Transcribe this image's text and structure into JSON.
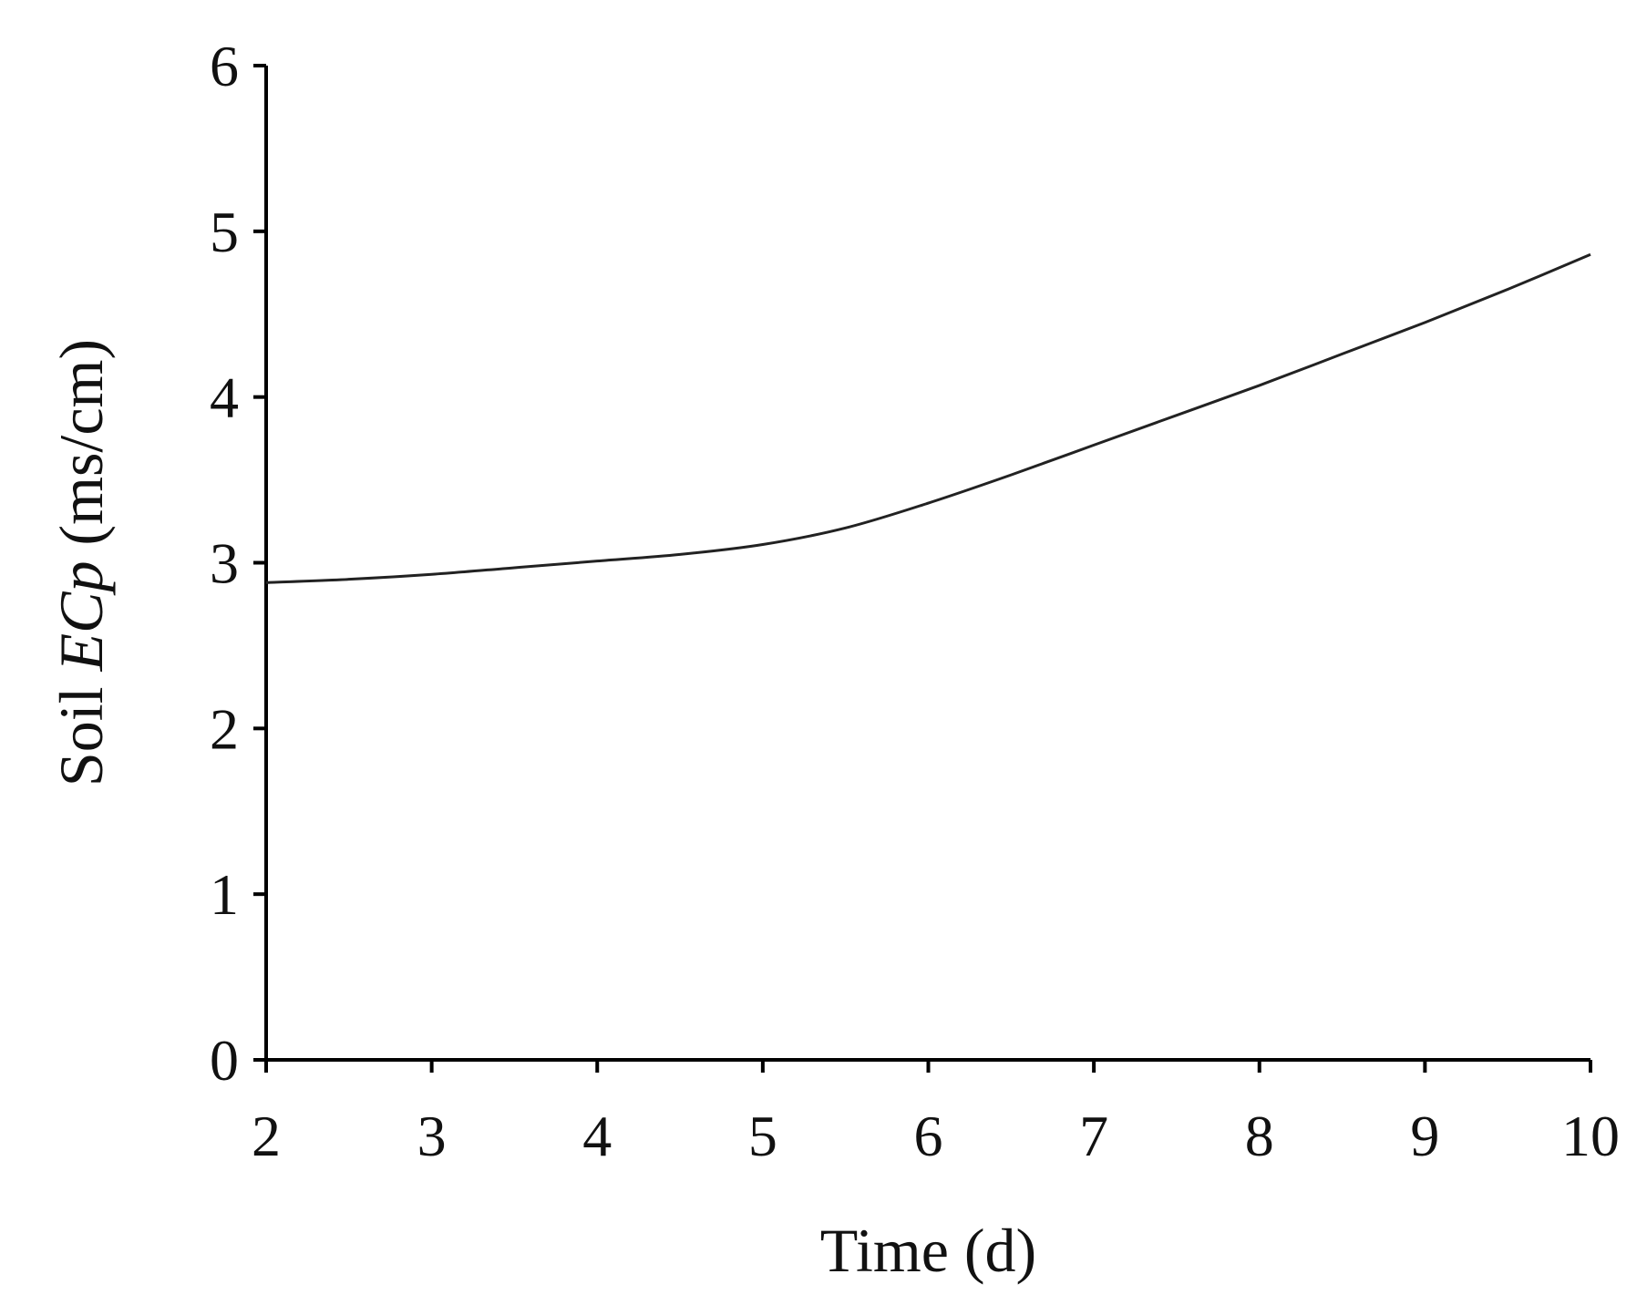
{
  "chart_data": {
    "type": "line",
    "xlabel": "Time (d)",
    "ylabel": {
      "prefix": "Soil ",
      "italic": "ECp",
      "suffix": " (ms/cm)"
    },
    "xlim": [
      2,
      10
    ],
    "ylim": [
      0,
      6
    ],
    "x_ticks": [
      2,
      3,
      4,
      5,
      6,
      7,
      8,
      9,
      10
    ],
    "y_ticks": [
      0,
      1,
      2,
      3,
      4,
      5,
      6
    ],
    "grid": false,
    "series": [
      {
        "color": "#222222",
        "x": [
          2,
          2.5,
          3,
          3.5,
          4,
          4.5,
          5,
          5.5,
          6,
          6.5,
          7,
          7.5,
          8,
          8.5,
          9,
          9.5,
          10
        ],
        "y": [
          2.88,
          2.9,
          2.93,
          2.97,
          3.01,
          3.05,
          3.11,
          3.21,
          3.36,
          3.53,
          3.71,
          3.89,
          4.07,
          4.26,
          4.45,
          4.65,
          4.86
        ]
      }
    ]
  }
}
